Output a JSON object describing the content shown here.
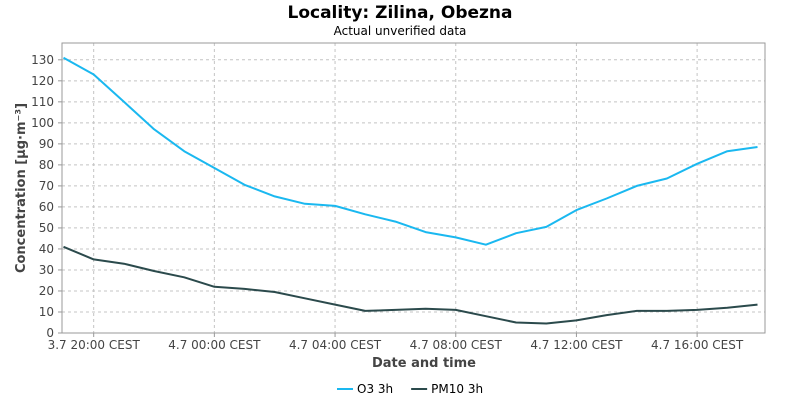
{
  "chart_data": {
    "type": "line",
    "title": "Locality: Zilina, Obezna",
    "subtitle": "Actual unverified data",
    "xlabel": "Date and time",
    "ylabel": "Concentration [µg·m⁻³]",
    "ylim": [
      0,
      138
    ],
    "yticks": [
      0,
      10,
      20,
      30,
      40,
      50,
      60,
      70,
      80,
      90,
      100,
      110,
      120,
      130
    ],
    "xlim": [
      -1.05,
      22.25
    ],
    "xticks": [
      {
        "x": 0,
        "label": "3.7 20:00 CEST"
      },
      {
        "x": 4,
        "label": "4.7 00:00 CEST"
      },
      {
        "x": 8,
        "label": "4.7 04:00 CEST"
      },
      {
        "x": 12,
        "label": "4.7 08:00 CEST"
      },
      {
        "x": 16,
        "label": "4.7 12:00 CEST"
      },
      {
        "x": 20,
        "label": "4.7 16:00 CEST"
      }
    ],
    "grid": true,
    "legend_position": "bottom",
    "x": [
      -1,
      0,
      1,
      2,
      3,
      4,
      5,
      6,
      7,
      8,
      9,
      10,
      11,
      12,
      13,
      14,
      15,
      16,
      17,
      18,
      19,
      20,
      21,
      22
    ],
    "series": [
      {
        "name": "O3 3h",
        "color": "#1ab8f0",
        "values": [
          131,
          123,
          110,
          97,
          86.5,
          78.5,
          70.5,
          65,
          61.5,
          60.5,
          56.5,
          53,
          48,
          45.5,
          42,
          47.5,
          50.5,
          58.5,
          64,
          70,
          73.5,
          80.5,
          86.5,
          88.5
        ]
      },
      {
        "name": "PM10 3h",
        "color": "#2b4a4c",
        "values": [
          41,
          35,
          33,
          29.5,
          26.5,
          22,
          21,
          19.5,
          16.5,
          13.5,
          10.5,
          11,
          11.5,
          11,
          8,
          5,
          4.5,
          6,
          8.5,
          10.5,
          10.5,
          11,
          12,
          13.5
        ]
      }
    ]
  }
}
